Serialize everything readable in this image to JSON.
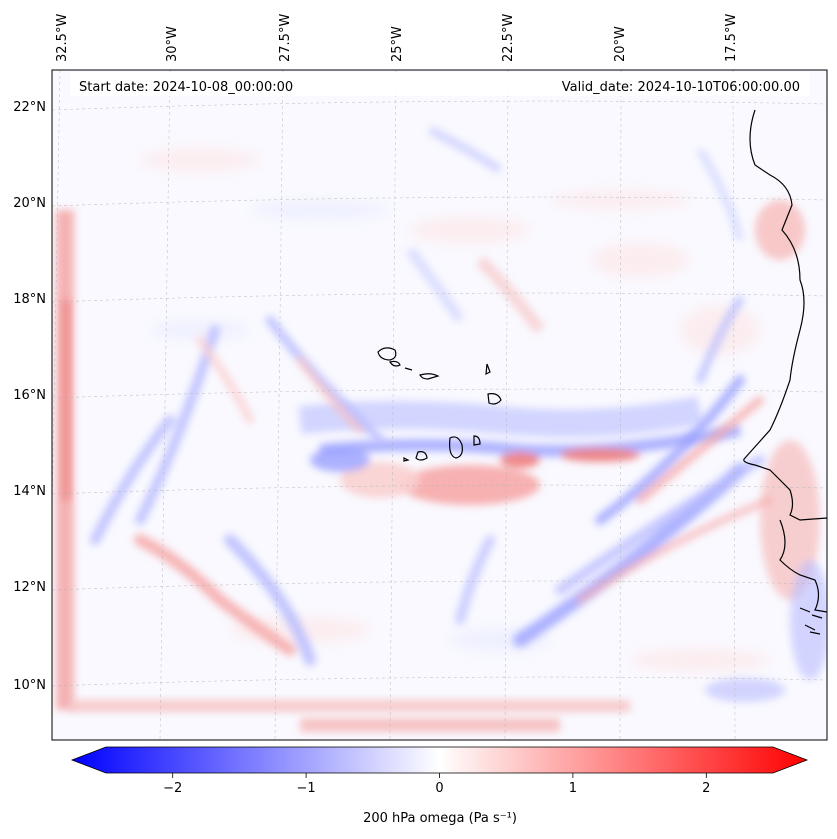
{
  "map": {
    "start_label": "Start date: 2024-10-08_00:00:00",
    "valid_label": "Valid_date: 2024-10-10T06:00:00.00",
    "lon_labels": [
      "32.5°W",
      "30°W",
      "27.5°W",
      "25°W",
      "22.5°W",
      "20°W",
      "17.5°W"
    ],
    "lat_labels": [
      "22°N",
      "20°N",
      "18°N",
      "16°N",
      "14°N",
      "12°N",
      "10°N"
    ],
    "grid": true,
    "colors": {
      "negative": "#0000ff",
      "zero": "#ffffff",
      "positive": "#ff0000",
      "coastline": "#000000"
    }
  },
  "colorbar": {
    "range": [
      -2.5,
      2.5
    ],
    "tick_values": [
      -2,
      -1,
      0,
      1,
      2
    ],
    "tick_labels": [
      "−2",
      "−1",
      "0",
      "1",
      "2"
    ],
    "label": "200 hPa omega (Pa s⁻¹)",
    "extend": "both"
  }
}
